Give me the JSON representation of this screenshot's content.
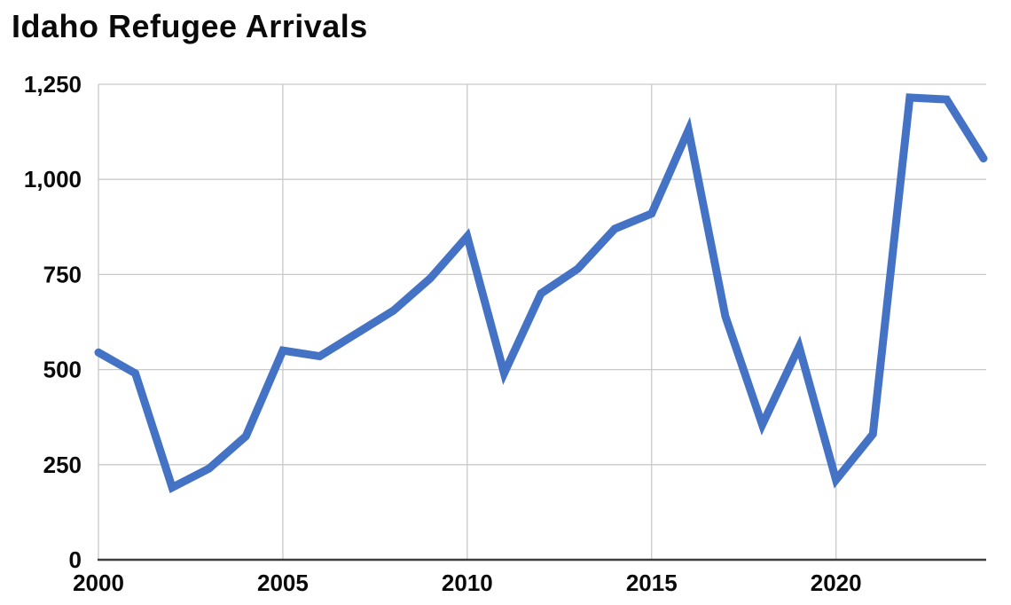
{
  "header": {
    "title": "Idaho Refugee Arrivals"
  },
  "chart_data": {
    "type": "line",
    "title": "Idaho Refugee Arrivals",
    "series_name": "Idaho refugee arrivals",
    "x": [
      2000,
      2001,
      2002,
      2003,
      2004,
      2005,
      2006,
      2007,
      2008,
      2009,
      2010,
      2011,
      2012,
      2013,
      2014,
      2015,
      2016,
      2017,
      2018,
      2019,
      2020,
      2021,
      2022,
      2023,
      2024
    ],
    "values": [
      545,
      490,
      190,
      240,
      325,
      550,
      535,
      595,
      655,
      740,
      850,
      490,
      700,
      765,
      870,
      910,
      1130,
      640,
      355,
      560,
      210,
      330,
      1215,
      1210,
      1055
    ],
    "xlabel": "",
    "ylabel": "",
    "xlim": [
      2000,
      2024
    ],
    "ylim": [
      0,
      1250
    ],
    "yticks": [
      0,
      250,
      500,
      750,
      1000,
      1250
    ],
    "ytick_labels": [
      "0",
      "250",
      "500",
      "750",
      "1,000",
      "1,250"
    ],
    "xticks": [
      2000,
      2005,
      2010,
      2015,
      2020
    ],
    "xtick_labels": [
      "2000",
      "2005",
      "2010",
      "2015",
      "2020"
    ],
    "grid": true,
    "legend": false,
    "line_color": "#4472C4",
    "grid_color": "#c9c9c9",
    "axis_color": "#3d3d3d",
    "text_color": "#0a0a0a"
  }
}
